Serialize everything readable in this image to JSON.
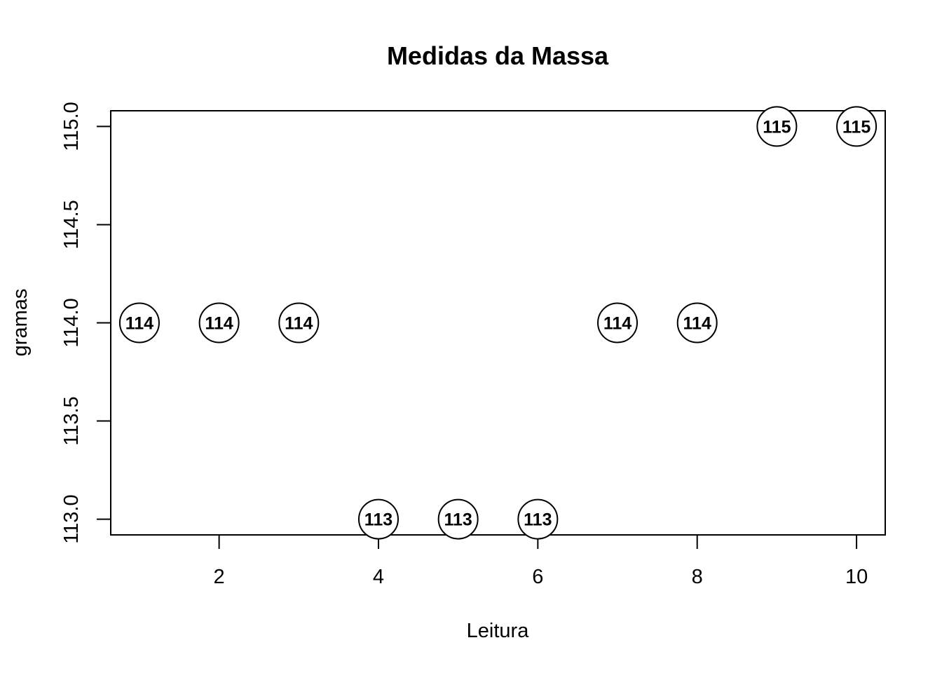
{
  "chart_data": {
    "type": "scatter",
    "title": "Medidas da Massa",
    "xlabel": "Leitura",
    "ylabel": "gramas",
    "x": [
      1,
      2,
      3,
      4,
      5,
      6,
      7,
      8,
      9,
      10
    ],
    "y": [
      114,
      114,
      114,
      113,
      113,
      113,
      114,
      114,
      115,
      115
    ],
    "point_labels": [
      "114",
      "114",
      "114",
      "113",
      "113",
      "113",
      "114",
      "114",
      "115",
      "115"
    ],
    "xlim": [
      0.64,
      10.36
    ],
    "ylim": [
      112.92,
      115.08
    ],
    "x_ticks": [
      2,
      4,
      6,
      8,
      10
    ],
    "x_tick_labels": [
      "2",
      "4",
      "6",
      "8",
      "10"
    ],
    "y_ticks": [
      113.0,
      113.5,
      114.0,
      114.5,
      115.0
    ],
    "y_tick_labels": [
      "113.0",
      "113.5",
      "114.0",
      "114.5",
      "115.0"
    ],
    "grid": false,
    "legend": "none",
    "marker": "open-circle"
  }
}
